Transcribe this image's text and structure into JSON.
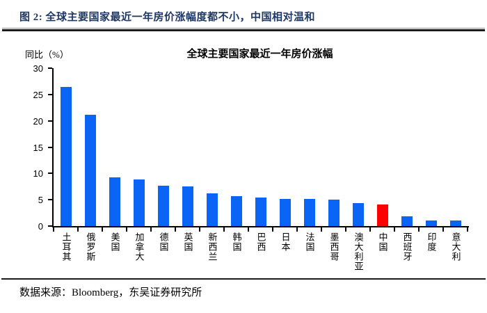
{
  "header": {
    "figure_caption": "图 2:  全球主要国家最近一年房价涨幅度都不小，中国相对温和",
    "caption_color": "#1f3864"
  },
  "footer": {
    "source_text": "数据来源：Bloomberg，东吴证券研究所"
  },
  "chart_data": {
    "type": "bar",
    "title": "全球主要国家最近一年房价涨幅",
    "ylabel": "同比（%）",
    "xlabel": "",
    "categories": [
      "土耳其",
      "俄罗斯",
      "美国",
      "加拿大",
      "德国",
      "英国",
      "新西兰",
      "韩国",
      "巴西",
      "日本",
      "法国",
      "墨西哥",
      "澳大利亚",
      "中国",
      "西班牙",
      "印度",
      "意大利"
    ],
    "values": [
      26.4,
      21.1,
      9.2,
      8.8,
      7.7,
      7.5,
      6.2,
      5.7,
      5.4,
      5.2,
      5.1,
      5.0,
      4.4,
      4.1,
      1.8,
      1.1,
      1.0
    ],
    "highlight_index": 13,
    "highlight_label": "中国",
    "bar_color": "#0a64f5",
    "highlight_color": "#ff0000",
    "ylim": [
      0,
      30
    ],
    "yticks": [
      0,
      5,
      10,
      15,
      20,
      25,
      30
    ],
    "grid": "off",
    "legend": "none"
  }
}
